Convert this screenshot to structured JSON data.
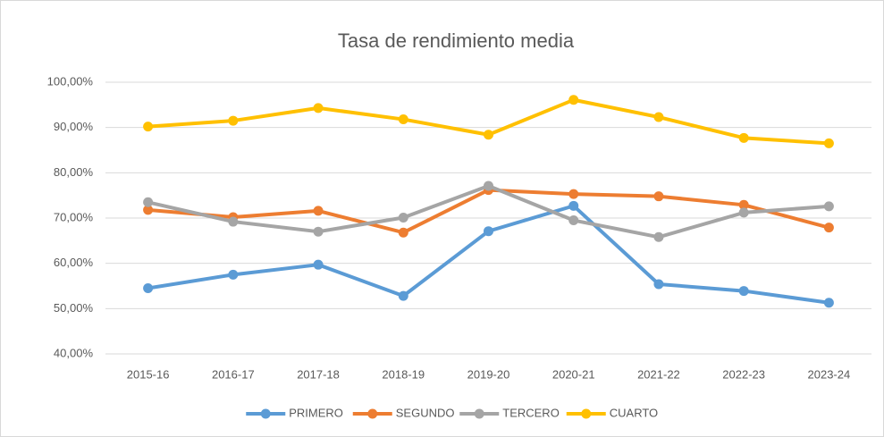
{
  "chart_data": {
    "type": "line",
    "title": "Tasa de rendimiento media",
    "categories": [
      "2015-16",
      "2016-17",
      "2017-18",
      "2018-19",
      "2019-20",
      "2020-21",
      "2021-22",
      "2022-23",
      "2023-24"
    ],
    "series": [
      {
        "name": "PRIMERO",
        "color": "#5b9bd5",
        "values": [
          54.5,
          57.5,
          59.7,
          52.8,
          67.1,
          72.7,
          55.4,
          53.9,
          51.3
        ]
      },
      {
        "name": "SEGUNDO",
        "color": "#ed7d31",
        "values": [
          71.8,
          70.2,
          71.6,
          66.8,
          76.2,
          75.3,
          74.8,
          72.9,
          67.9
        ]
      },
      {
        "name": "TERCERO",
        "color": "#a5a5a5",
        "values": [
          73.5,
          69.2,
          67.0,
          70.1,
          77.1,
          69.5,
          65.8,
          71.2,
          72.6
        ]
      },
      {
        "name": "CUARTO",
        "color": "#ffc000",
        "values": [
          90.2,
          91.5,
          94.3,
          91.8,
          88.4,
          96.1,
          92.3,
          87.7,
          86.5
        ]
      }
    ],
    "ylim": [
      40,
      100
    ],
    "yticks": [
      {
        "value": 40,
        "label": "40,00%"
      },
      {
        "value": 50,
        "label": "50,00%"
      },
      {
        "value": 60,
        "label": "60,00%"
      },
      {
        "value": 70,
        "label": "70,00%"
      },
      {
        "value": 80,
        "label": "80,00%"
      },
      {
        "value": 90,
        "label": "90,00%"
      },
      {
        "value": 100,
        "label": "100,00%"
      }
    ],
    "grid": true,
    "legend": "bottom"
  }
}
